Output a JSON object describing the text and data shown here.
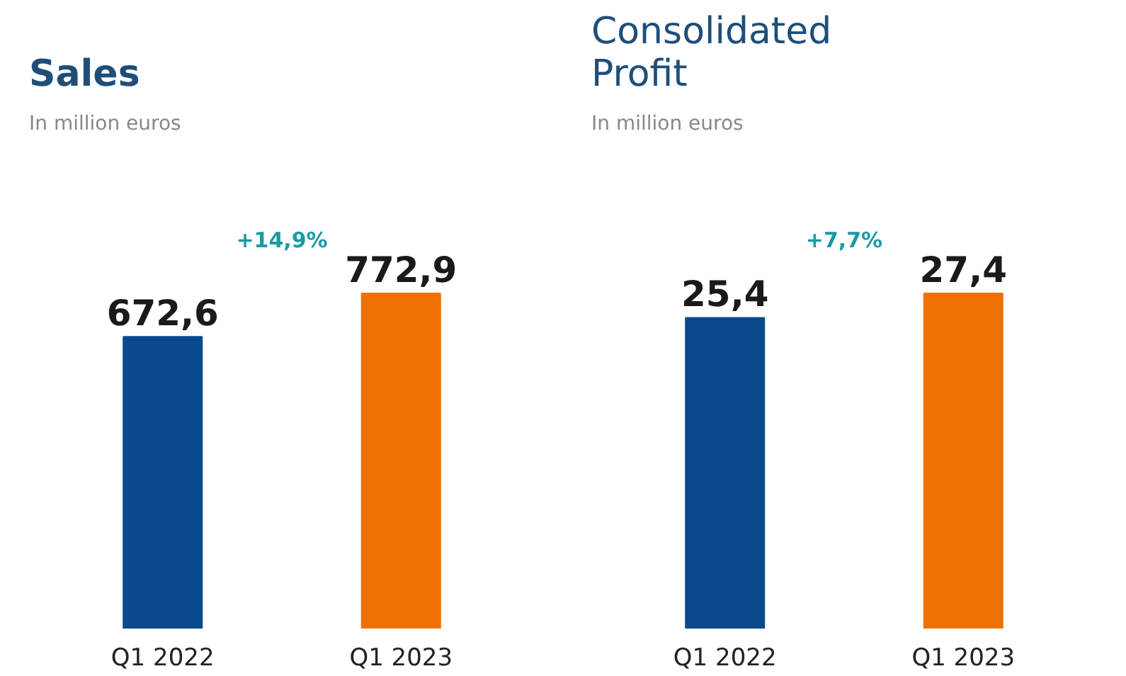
{
  "chart_data": [
    {
      "type": "bar",
      "title": "Sales",
      "subtitle": "In million euros",
      "categories": [
        "Q1 2022",
        "Q1 2023"
      ],
      "values": [
        672.6,
        772.9
      ],
      "value_labels": [
        "672,6",
        "772,9"
      ],
      "colors": [
        "#0a4a8c",
        "#ee7203"
      ],
      "annotations": [
        "+14,9%"
      ],
      "grid": false,
      "legend": false
    },
    {
      "type": "bar",
      "title": "Consolidated Profit",
      "subtitle": "In million euros",
      "categories": [
        "Q1 2022",
        "Q1 2023"
      ],
      "values": [
        25.4,
        27.4
      ],
      "value_labels": [
        "25,4",
        "27,4"
      ],
      "colors": [
        "#0a4a8c",
        "#ee7203"
      ],
      "annotations": [
        "+7,7%"
      ],
      "grid": false,
      "legend": false
    }
  ]
}
